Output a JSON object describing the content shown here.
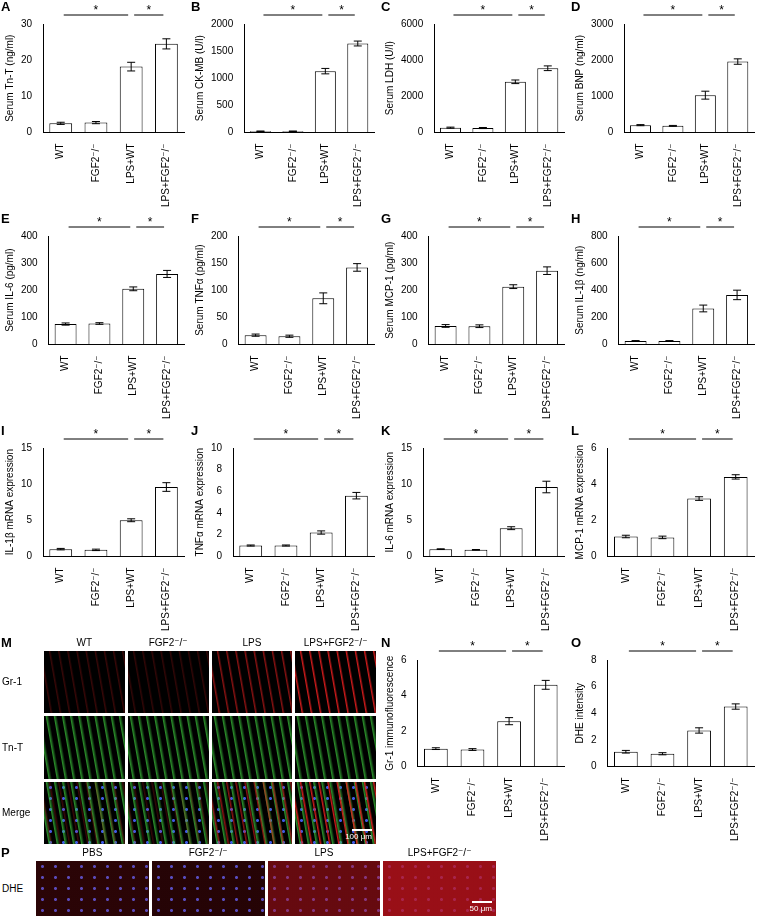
{
  "chart_data": [
    {
      "letter": "A",
      "type": "bar",
      "y_label": "Serum Tn-T (ng/ml)",
      "categories": [
        "WT",
        "FGF2⁻/⁻",
        "LPS+WT",
        "LPS+FGF2⁻/⁻"
      ],
      "values": [
        2.5,
        2.7,
        18.2,
        24.5
      ],
      "errors": [
        0.3,
        0.3,
        1.2,
        1.4
      ],
      "ylim": [
        0,
        30
      ],
      "yticks": [
        0,
        10,
        20,
        30
      ],
      "color": "#ffffff",
      "grid": false,
      "significance": [
        {
          "from": "WT",
          "to": "LPS+WT",
          "label": "*"
        },
        {
          "from": "LPS+WT",
          "to": "LPS+FGF2⁻/⁻",
          "label": "*"
        }
      ]
    },
    {
      "letter": "B",
      "type": "bar",
      "y_label": "Serum CK-MB (U/l)",
      "categories": [
        "WT",
        "FGF2⁻/⁻",
        "LPS+WT",
        "LPS+FGF2⁻/⁻"
      ],
      "values": [
        20,
        20,
        1130,
        1640
      ],
      "errors": [
        5,
        5,
        50,
        45
      ],
      "ylim": [
        0,
        2000
      ],
      "yticks": [
        0,
        500,
        1000,
        1500,
        2000
      ],
      "color": "#ffffff",
      "grid": false,
      "significance": [
        {
          "from": "WT",
          "to": "LPS+WT",
          "label": "*"
        },
        {
          "from": "LPS+WT",
          "to": "LPS+FGF2⁻/⁻",
          "label": "*"
        }
      ]
    },
    {
      "letter": "C",
      "type": "bar",
      "y_label": "Serum LDH (U/l)",
      "categories": [
        "WT",
        "FGF2⁻/⁻",
        "LPS+WT",
        "LPS+FGF2⁻/⁻"
      ],
      "values": [
        260,
        240,
        2800,
        3550
      ],
      "errors": [
        30,
        30,
        100,
        130
      ],
      "ylim": [
        0,
        6000
      ],
      "yticks": [
        0,
        2000,
        4000,
        6000
      ],
      "color": "#ffffff",
      "grid": false,
      "significance": [
        {
          "from": "WT",
          "to": "LPS+WT",
          "label": "*"
        },
        {
          "from": "LPS+WT",
          "to": "LPS+FGF2⁻/⁻",
          "label": "*"
        }
      ]
    },
    {
      "letter": "D",
      "type": "bar",
      "y_label": "Serum BNP (ng/ml)",
      "categories": [
        "WT",
        "FGF2⁻/⁻",
        "LPS+WT",
        "LPS+FGF2⁻/⁻"
      ],
      "values": [
        200,
        180,
        1030,
        1960
      ],
      "errors": [
        15,
        12,
        110,
        75
      ],
      "ylim": [
        0,
        3000
      ],
      "yticks": [
        0,
        1000,
        2000,
        3000
      ],
      "color": "#ffffff",
      "grid": false,
      "significance": [
        {
          "from": "WT",
          "to": "LPS+WT",
          "label": "*"
        },
        {
          "from": "LPS+WT",
          "to": "LPS+FGF2⁻/⁻",
          "label": "*"
        }
      ]
    },
    {
      "letter": "E",
      "type": "bar",
      "y_label": "Serum IL-6 (pg/ml)",
      "categories": [
        "WT",
        "FGF2⁻/⁻",
        "LPS+WT",
        "LPS+FGF2⁻/⁻"
      ],
      "values": [
        75,
        77,
        205,
        260
      ],
      "errors": [
        4,
        3,
        7,
        13
      ],
      "ylim": [
        0,
        400
      ],
      "yticks": [
        0,
        100,
        200,
        300,
        400
      ],
      "color": "#ffffff",
      "grid": false,
      "significance": [
        {
          "from": "WT",
          "to": "LPS+WT",
          "label": "*"
        },
        {
          "from": "LPS+WT",
          "to": "LPS+FGF2⁻/⁻",
          "label": "*"
        }
      ]
    },
    {
      "letter": "F",
      "type": "bar",
      "y_label": "Serum TNFα (pg/ml)",
      "categories": [
        "WT",
        "FGF2⁻/⁻",
        "LPS+WT",
        "LPS+FGF2⁻/⁻"
      ],
      "values": [
        17,
        15,
        85,
        142
      ],
      "errors": [
        2,
        2,
        10,
        7
      ],
      "ylim": [
        0,
        200
      ],
      "yticks": [
        0,
        50,
        100,
        150,
        200
      ],
      "color": "#ffffff",
      "grid": false,
      "significance": [
        {
          "from": "WT",
          "to": "LPS+WT",
          "label": "*"
        },
        {
          "from": "LPS+WT",
          "to": "LPS+FGF2⁻/⁻",
          "label": "*"
        }
      ]
    },
    {
      "letter": "G",
      "type": "bar",
      "y_label": "Serum MCP-1 (pg/ml)",
      "categories": [
        "WT",
        "FGF2⁻/⁻",
        "LPS+WT",
        "LPS+FGF2⁻/⁻"
      ],
      "values": [
        68,
        67,
        213,
        272
      ],
      "errors": [
        5,
        5,
        7,
        14
      ],
      "ylim": [
        0,
        400
      ],
      "yticks": [
        0,
        100,
        200,
        300,
        400
      ],
      "color": "#ffffff",
      "grid": false,
      "significance": [
        {
          "from": "WT",
          "to": "LPS+WT",
          "label": "*"
        },
        {
          "from": "LPS+WT",
          "to": "LPS+FGF2⁻/⁻",
          "label": "*"
        }
      ]
    },
    {
      "letter": "H",
      "type": "bar",
      "y_label": "Serum IL-1β (ng/ml)",
      "categories": [
        "WT",
        "FGF2⁻/⁻",
        "LPS+WT",
        "LPS+FGF2⁻/⁻"
      ],
      "values": [
        25,
        25,
        265,
        365
      ],
      "errors": [
        3,
        3,
        25,
        35
      ],
      "ylim": [
        0,
        800
      ],
      "yticks": [
        0,
        200,
        400,
        600,
        800
      ],
      "color": "#ffffff",
      "grid": false,
      "significance": [
        {
          "from": "WT",
          "to": "LPS+WT",
          "label": "*"
        },
        {
          "from": "LPS+WT",
          "to": "LPS+FGF2⁻/⁻",
          "label": "*"
        }
      ]
    },
    {
      "letter": "I",
      "type": "bar",
      "y_label": "IL-1β mRNA expression",
      "categories": [
        "WT",
        "FGF2⁻/⁻",
        "LPS+WT",
        "LPS+FGF2⁻/⁻"
      ],
      "values": [
        1.0,
        0.9,
        5.0,
        9.6
      ],
      "errors": [
        0.1,
        0.1,
        0.2,
        0.6
      ],
      "ylim": [
        0,
        15
      ],
      "yticks": [
        0,
        5,
        10,
        15
      ],
      "color": "#ffffff",
      "grid": false,
      "significance": [
        {
          "from": "WT",
          "to": "LPS+WT",
          "label": "*"
        },
        {
          "from": "LPS+WT",
          "to": "LPS+FGF2⁻/⁻",
          "label": "*"
        }
      ]
    },
    {
      "letter": "J",
      "type": "bar",
      "y_label": "TNFα mRNA expression",
      "categories": [
        "WT",
        "FGF2⁻/⁻",
        "LPS+WT",
        "LPS+FGF2⁻/⁻"
      ],
      "values": [
        1.0,
        1.0,
        2.2,
        5.6
      ],
      "errors": [
        0.05,
        0.05,
        0.15,
        0.3
      ],
      "ylim": [
        0,
        10
      ],
      "yticks": [
        0,
        2,
        4,
        6,
        8,
        10
      ],
      "color": "#ffffff",
      "grid": false,
      "significance": [
        {
          "from": "WT",
          "to": "LPS+WT",
          "label": "*"
        },
        {
          "from": "LPS+WT",
          "to": "LPS+FGF2⁻/⁻",
          "label": "*"
        }
      ]
    },
    {
      "letter": "K",
      "type": "bar",
      "y_label": "IL-6 mRNA expression",
      "categories": [
        "WT",
        "FGF2⁻/⁻",
        "LPS+WT",
        "LPS+FGF2⁻/⁻"
      ],
      "values": [
        1.0,
        0.9,
        3.9,
        9.6
      ],
      "errors": [
        0.05,
        0.05,
        0.2,
        0.8
      ],
      "ylim": [
        0,
        15
      ],
      "yticks": [
        0,
        5,
        10,
        15
      ],
      "color": "#ffffff",
      "grid": false,
      "significance": [
        {
          "from": "WT",
          "to": "LPS+WT",
          "label": "*"
        },
        {
          "from": "LPS+WT",
          "to": "LPS+FGF2⁻/⁻",
          "label": "*"
        }
      ]
    },
    {
      "letter": "L",
      "type": "bar",
      "y_label": "MCP-1 mRNA expression",
      "categories": [
        "WT",
        "FGF2⁻/⁻",
        "LPS+WT",
        "LPS+FGF2⁻/⁻"
      ],
      "values": [
        1.1,
        1.05,
        3.2,
        4.4
      ],
      "errors": [
        0.07,
        0.07,
        0.1,
        0.12
      ],
      "ylim": [
        0,
        6
      ],
      "yticks": [
        0,
        2,
        4,
        6
      ],
      "color": "#ffffff",
      "grid": false,
      "significance": [
        {
          "from": "WT",
          "to": "LPS+WT",
          "label": "*"
        },
        {
          "from": "LPS+WT",
          "to": "LPS+FGF2⁻/⁻",
          "label": "*"
        }
      ]
    },
    {
      "letter": "N",
      "type": "bar",
      "y_label": "Gr-1 immunofluorescence",
      "categories": [
        "WT",
        "FGF2⁻/⁻",
        "LPS+WT",
        "LPS+FGF2⁻/⁻"
      ],
      "values": [
        1.0,
        0.95,
        2.55,
        4.6
      ],
      "errors": [
        0.05,
        0.05,
        0.2,
        0.25
      ],
      "ylim": [
        0,
        6
      ],
      "yticks": [
        0,
        2,
        4,
        6
      ],
      "color": "#ffffff",
      "grid": false,
      "significance": [
        {
          "from": "WT",
          "to": "LPS+WT",
          "label": "*"
        },
        {
          "from": "LPS+WT",
          "to": "LPS+FGF2⁻/⁻",
          "label": "*"
        }
      ]
    },
    {
      "letter": "O",
      "type": "bar",
      "y_label": "DHE intensity",
      "categories": [
        "WT",
        "FGF2⁻/⁻",
        "LPS+WT",
        "LPS+FGF2⁻/⁻"
      ],
      "values": [
        1.1,
        0.95,
        2.7,
        4.5
      ],
      "errors": [
        0.1,
        0.08,
        0.2,
        0.2
      ],
      "ylim": [
        0,
        8
      ],
      "yticks": [
        0,
        2,
        4,
        6,
        8
      ],
      "color": "#ffffff",
      "grid": false,
      "significance": [
        {
          "from": "WT",
          "to": "LPS+WT",
          "label": "*"
        },
        {
          "from": "LPS+WT",
          "to": "LPS+FGF2⁻/⁻",
          "label": "*"
        }
      ]
    }
  ],
  "image_panels": [
    {
      "letter": "M",
      "rows": [
        "Gr-1",
        "Tn-T",
        "Merge"
      ],
      "columns": [
        "WT",
        "FGF2⁻/⁻",
        "LPS",
        "LPS+FGF2⁻/⁻"
      ],
      "scale_bar": "100 μm"
    },
    {
      "letter": "P",
      "rows": [
        "DHE"
      ],
      "columns": [
        "PBS",
        "FGF2⁻/⁻",
        "LPS",
        "LPS+FGF2⁻/⁻"
      ],
      "scale_bar": "50 μm"
    }
  ]
}
